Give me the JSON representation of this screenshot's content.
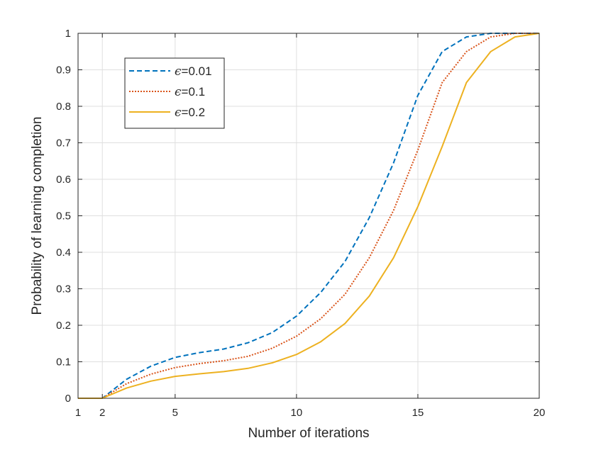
{
  "chart_data": {
    "type": "line",
    "title": "",
    "xlabel": "Number of iterations",
    "ylabel": "Probability of learning completion",
    "xlim": [
      1,
      20
    ],
    "ylim": [
      0,
      1
    ],
    "xticks": [
      1,
      2,
      5,
      10,
      15,
      20
    ],
    "xtick_labels": [
      "1",
      "2",
      "5",
      "10",
      "15",
      "20"
    ],
    "yticks": [
      0,
      0.1,
      0.2,
      0.3,
      0.4,
      0.5,
      0.6,
      0.7,
      0.8,
      0.9,
      1
    ],
    "ytick_labels": [
      "0",
      "0.1",
      "0.2",
      "0.3",
      "0.4",
      "0.5",
      "0.6",
      "0.7",
      "0.8",
      "0.9",
      "1"
    ],
    "grid": true,
    "legend_position": "top-left",
    "x": [
      1,
      2,
      3,
      4,
      5,
      6,
      7,
      8,
      9,
      10,
      11,
      12,
      13,
      14,
      15,
      16,
      17,
      18,
      19,
      20
    ],
    "series": [
      {
        "name": "ε=0.01",
        "legend_symbol": "ϵ",
        "legend_text": "=0.01",
        "color": "#0072BD",
        "style": "dashed",
        "values": [
          0,
          0,
          0.052,
          0.088,
          0.112,
          0.125,
          0.135,
          0.152,
          0.18,
          0.225,
          0.29,
          0.375,
          0.495,
          0.645,
          0.83,
          0.95,
          0.99,
          1,
          1,
          1
        ]
      },
      {
        "name": "ε=0.1",
        "legend_symbol": "ϵ",
        "legend_text": "=0.1",
        "color": "#D95319",
        "style": "dotted",
        "values": [
          0,
          0,
          0.04,
          0.066,
          0.084,
          0.095,
          0.103,
          0.115,
          0.137,
          0.17,
          0.218,
          0.285,
          0.385,
          0.515,
          0.68,
          0.865,
          0.95,
          0.99,
          1,
          1
        ]
      },
      {
        "name": "ε=0.2",
        "legend_symbol": "ϵ",
        "legend_text": "=0.2",
        "color": "#EDB120",
        "style": "solid",
        "values": [
          0,
          0,
          0.028,
          0.047,
          0.06,
          0.067,
          0.073,
          0.082,
          0.097,
          0.12,
          0.155,
          0.205,
          0.28,
          0.385,
          0.525,
          0.69,
          0.865,
          0.95,
          0.99,
          1
        ]
      }
    ]
  }
}
